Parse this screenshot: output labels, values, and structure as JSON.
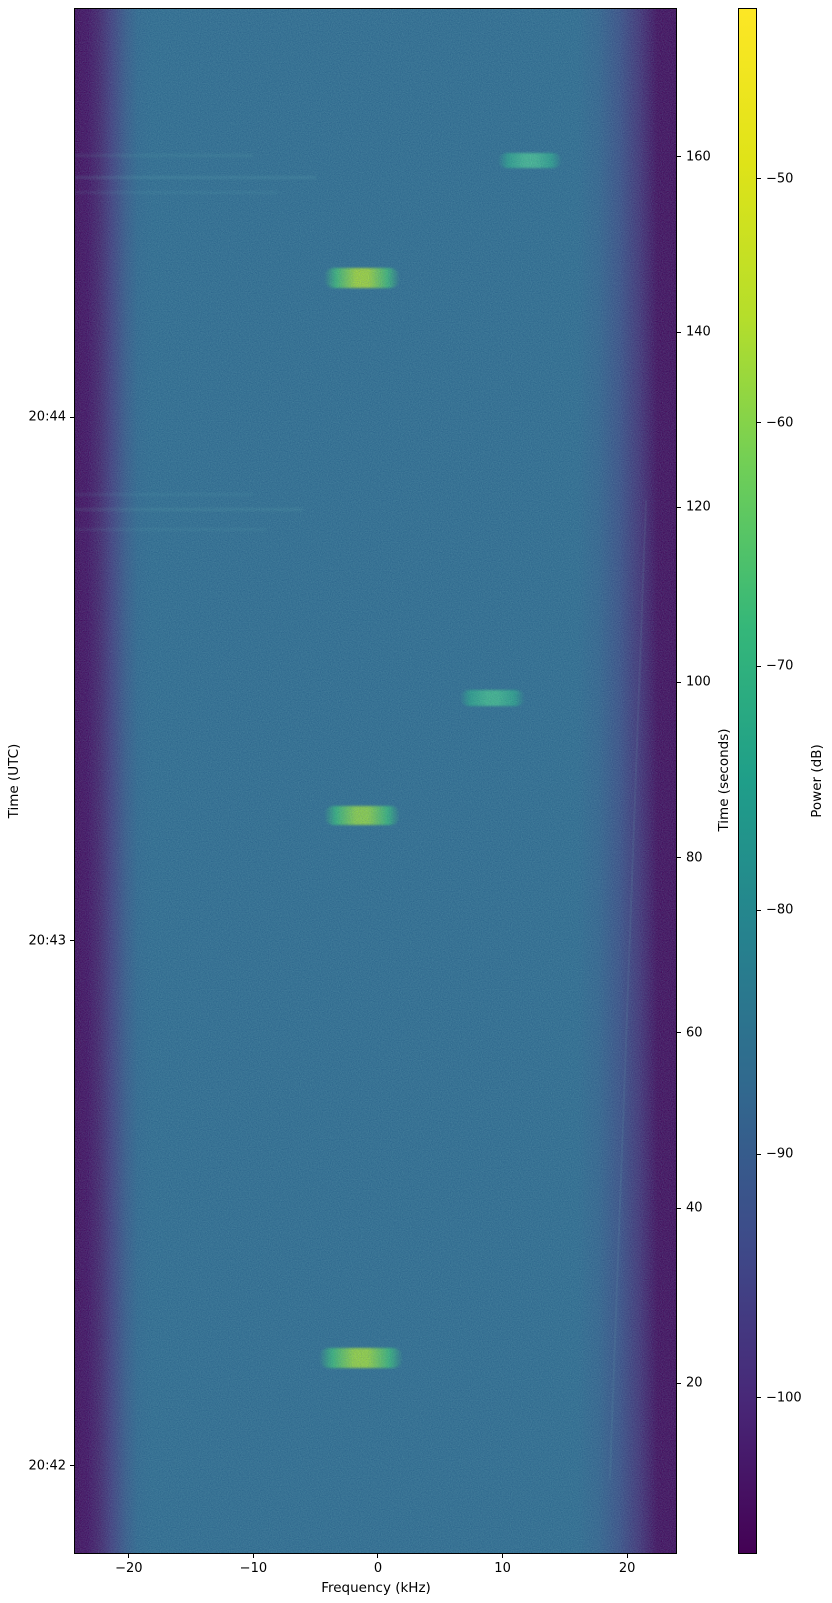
{
  "chart_data": {
    "type": "heatmap",
    "subtype": "spectrogram-waterfall",
    "title": "",
    "xlabel": "Frequency (kHz)",
    "ylabel_left": "Time (UTC)",
    "ylabel_right": "Time (seconds)",
    "colorbar_label": "Power (dB)",
    "colormap": "viridis",
    "grid": false,
    "xlim_khz": [
      -24.4,
      24.0
    ],
    "x_ticks": [
      {
        "v": -20,
        "label": "−20"
      },
      {
        "v": -10,
        "label": "−10"
      },
      {
        "v": 0,
        "label": "0"
      },
      {
        "v": 10,
        "label": "10"
      },
      {
        "v": 20,
        "label": "20"
      }
    ],
    "time_lim_s": [
      0.5,
      177.0
    ],
    "time_ticks_s": [
      {
        "v": 20,
        "label": "20"
      },
      {
        "v": 40,
        "label": "40"
      },
      {
        "v": 60,
        "label": "60"
      },
      {
        "v": 80,
        "label": "80"
      },
      {
        "v": 100,
        "label": "100"
      },
      {
        "v": 120,
        "label": "120"
      },
      {
        "v": 140,
        "label": "140"
      },
      {
        "v": 160,
        "label": "160"
      }
    ],
    "utc_ticks": [
      {
        "label": "20:42",
        "t_s": 10.6
      },
      {
        "label": "20:43",
        "t_s": 70.5
      },
      {
        "label": "20:44",
        "t_s": 130.3
      }
    ],
    "power_lim_db": [
      -106.4,
      -43.0
    ],
    "colorbar_ticks": [
      {
        "v": -50,
        "label": "−50"
      },
      {
        "v": -60,
        "label": "−60"
      },
      {
        "v": -70,
        "label": "−70"
      },
      {
        "v": -80,
        "label": "−80"
      },
      {
        "v": -90,
        "label": "−90"
      },
      {
        "v": -100,
        "label": "−100"
      }
    ],
    "background_power_db": -85,
    "edge_power_db": -105,
    "viridis_stops": [
      {
        "frac": 0.0,
        "color": "#440154"
      },
      {
        "frac": 0.1,
        "color": "#482878"
      },
      {
        "frac": 0.2,
        "color": "#3e4a89"
      },
      {
        "frac": 0.3,
        "color": "#31688e"
      },
      {
        "frac": 0.4,
        "color": "#26828e"
      },
      {
        "frac": 0.5,
        "color": "#1f9e89"
      },
      {
        "frac": 0.6,
        "color": "#35b779"
      },
      {
        "frac": 0.7,
        "color": "#6ece58"
      },
      {
        "frac": 0.8,
        "color": "#b5de2b"
      },
      {
        "frac": 0.9,
        "color": "#dfe318"
      },
      {
        "frac": 1.0,
        "color": "#fde725"
      }
    ],
    "signals": [
      {
        "f_khz": [
          -4.7,
          2.0
        ],
        "t_s": [
          21.7,
          24.0
        ],
        "peak_db": -54,
        "peak_color": "#9edc3a",
        "edge_color": "#38b977"
      },
      {
        "f_khz": [
          -4.3,
          1.8
        ],
        "t_s": [
          83.7,
          85.9
        ],
        "peak_db": -55,
        "peak_color": "#93d741",
        "edge_color": "#35b779"
      },
      {
        "f_khz": [
          6.6,
          11.8
        ],
        "t_s": [
          97.3,
          99.1
        ],
        "peak_db": -68,
        "peak_color": "#41bb8b",
        "edge_color": "#2aa188"
      },
      {
        "f_khz": [
          -4.3,
          1.8
        ],
        "t_s": [
          145.0,
          147.3
        ],
        "peak_db": -52,
        "peak_color": "#a8dd33",
        "edge_color": "#3cba75"
      },
      {
        "f_khz": [
          9.6,
          14.8
        ],
        "t_s": [
          158.7,
          160.4
        ],
        "peak_db": -66,
        "peak_color": "#45bd90",
        "edge_color": "#2ba18a"
      }
    ],
    "faint_streaks": [
      {
        "t_s": 160.2,
        "f_khz": [
          -24.4,
          -10.0
        ],
        "opacity": 0.12
      },
      {
        "t_s": 157.6,
        "f_khz": [
          -24.4,
          -5.0
        ],
        "opacity": 0.16
      },
      {
        "t_s": 155.9,
        "f_khz": [
          -24.4,
          -8.0
        ],
        "opacity": 0.1
      },
      {
        "t_s": 121.5,
        "f_khz": [
          -24.4,
          -10.0
        ],
        "opacity": 0.1
      },
      {
        "t_s": 119.8,
        "f_khz": [
          -24.4,
          -6.0
        ],
        "opacity": 0.14
      },
      {
        "t_s": 117.5,
        "f_khz": [
          -24.4,
          -9.0
        ],
        "opacity": 0.1
      }
    ],
    "faint_trace": {
      "f_start_khz": 21.6,
      "t_start_s": 120.8,
      "f_end_khz": 18.7,
      "t_end_s": 9.0,
      "opacity": 0.1
    }
  }
}
